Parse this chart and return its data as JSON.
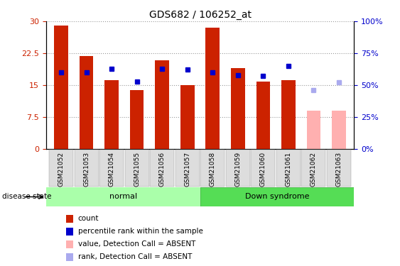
{
  "title": "GDS682 / 106252_at",
  "samples": [
    "GSM21052",
    "GSM21053",
    "GSM21054",
    "GSM21055",
    "GSM21056",
    "GSM21057",
    "GSM21058",
    "GSM21059",
    "GSM21060",
    "GSM21061",
    "GSM21062",
    "GSM21063"
  ],
  "bar_values": [
    29.0,
    21.8,
    16.2,
    13.8,
    20.8,
    15.0,
    28.5,
    19.0,
    15.8,
    16.2,
    9.0,
    9.0
  ],
  "bar_colors": [
    "#cc2200",
    "#cc2200",
    "#cc2200",
    "#cc2200",
    "#cc2200",
    "#cc2200",
    "#cc2200",
    "#cc2200",
    "#cc2200",
    "#cc2200",
    "#ffb0b0",
    "#ffb0b0"
  ],
  "marker_values": [
    60.0,
    60.0,
    63.0,
    53.0,
    63.0,
    62.0,
    60.0,
    58.0,
    57.0,
    65.0,
    46.0,
    52.0
  ],
  "marker_colors": [
    "#0000cc",
    "#0000cc",
    "#0000cc",
    "#0000cc",
    "#0000cc",
    "#0000cc",
    "#0000cc",
    "#0000cc",
    "#0000cc",
    "#0000cc",
    "#aaaaee",
    "#aaaaee"
  ],
  "ylim_left": [
    0,
    30
  ],
  "ylim_right": [
    0,
    100
  ],
  "yticks_left": [
    0,
    7.5,
    15,
    22.5,
    30
  ],
  "ytick_labels_left": [
    "0",
    "7.5",
    "15",
    "22.5",
    "30"
  ],
  "yticks_right": [
    0,
    25,
    50,
    75,
    100
  ],
  "ytick_labels_right": [
    "0%",
    "25%",
    "50%",
    "75%",
    "100%"
  ],
  "normal_color": "#aaffaa",
  "down_color": "#55dd55",
  "group_bar_bg": "#dddddd",
  "ylabel_left_color": "#cc2200",
  "ylabel_right_color": "#0000cc",
  "disease_state_label": "disease state",
  "normal_label": "normal",
  "down_label": "Down syndrome",
  "legend_items": [
    {
      "label": "count",
      "color": "#cc2200"
    },
    {
      "label": "percentile rank within the sample",
      "color": "#0000cc"
    },
    {
      "label": "value, Detection Call = ABSENT",
      "color": "#ffb0b0"
    },
    {
      "label": "rank, Detection Call = ABSENT",
      "color": "#aaaaee"
    }
  ],
  "bar_width": 0.55,
  "marker_size": 5,
  "grid_color": "#000000",
  "grid_alpha": 0.4,
  "grid_linestyle": ":"
}
